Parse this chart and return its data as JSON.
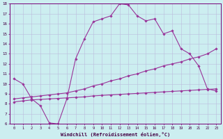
{
  "xlabel": "Windchill (Refroidissement éolien,°C)",
  "bg_color": "#cceef0",
  "line_color": "#993399",
  "grid_color": "#bbbbdd",
  "xlim": [
    -0.5,
    23.5
  ],
  "ylim": [
    6,
    18
  ],
  "yticks": [
    6,
    7,
    8,
    9,
    10,
    11,
    12,
    13,
    14,
    15,
    16,
    17,
    18
  ],
  "xticks": [
    0,
    1,
    2,
    3,
    4,
    5,
    6,
    7,
    8,
    9,
    10,
    11,
    12,
    13,
    14,
    15,
    16,
    17,
    18,
    19,
    20,
    21,
    22,
    23
  ],
  "line1_x": [
    0,
    1,
    2,
    3,
    4,
    5,
    6,
    7,
    8,
    9,
    10,
    11,
    12,
    13,
    14,
    15,
    16,
    17,
    18,
    19,
    20,
    21,
    22,
    23
  ],
  "line1_y": [
    10.5,
    10.0,
    8.5,
    7.8,
    6.1,
    6.0,
    8.5,
    12.5,
    14.5,
    16.2,
    16.5,
    16.8,
    18.0,
    17.9,
    16.8,
    16.3,
    16.5,
    15.0,
    15.3,
    13.5,
    13.0,
    11.8,
    9.5,
    9.3
  ],
  "line2_x": [
    0,
    1,
    2,
    3,
    4,
    5,
    6,
    7,
    8,
    9,
    10,
    11,
    12,
    13,
    14,
    15,
    16,
    17,
    18,
    19,
    20,
    21,
    22,
    23
  ],
  "line2_y": [
    8.5,
    8.6,
    8.7,
    8.8,
    8.9,
    9.0,
    9.1,
    9.3,
    9.5,
    9.8,
    10.0,
    10.3,
    10.5,
    10.8,
    11.0,
    11.3,
    11.5,
    11.8,
    12.0,
    12.2,
    12.5,
    12.7,
    13.0,
    13.5
  ],
  "line3_x": [
    0,
    1,
    2,
    3,
    4,
    5,
    6,
    7,
    8,
    9,
    10,
    11,
    12,
    13,
    14,
    15,
    16,
    17,
    18,
    19,
    20,
    21,
    22,
    23
  ],
  "line3_y": [
    8.2,
    8.3,
    8.4,
    8.45,
    8.5,
    8.55,
    8.6,
    8.65,
    8.7,
    8.8,
    8.85,
    8.9,
    8.95,
    9.0,
    9.05,
    9.1,
    9.15,
    9.2,
    9.25,
    9.3,
    9.35,
    9.4,
    9.45,
    9.5
  ]
}
